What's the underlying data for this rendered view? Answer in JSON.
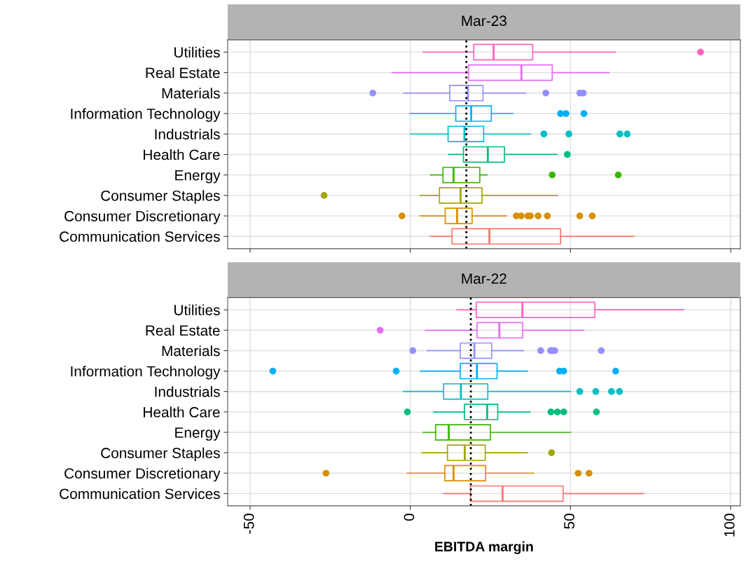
{
  "chart_data": [
    {
      "type": "box",
      "title": "Mar-23",
      "orientation": "horizontal",
      "tick_labels": "y",
      "grid": true,
      "marker": "circle",
      "categories": [
        "Utilities",
        "Real Estate",
        "Materials",
        "Information Technology",
        "Industrials",
        "Health Care",
        "Energy",
        "Consumer Staples",
        "Consumer Discretionary",
        "Communication Services"
      ],
      "colors": [
        "#ff62bc",
        "#e76bf3",
        "#9590ff",
        "#00b0f6",
        "#00bfc4",
        "#00bf7d",
        "#39b600",
        "#a3a500",
        "#d89000",
        "#f8766d"
      ],
      "xlim": [
        -57,
        103
      ],
      "xticks": [
        -50,
        0,
        50,
        100
      ],
      "ref_lines": [
        {
          "axis": "x",
          "value": 17.5,
          "color": "#000000",
          "line_style": "dotted"
        }
      ],
      "boxes": [
        {
          "low": 4,
          "q1": 19.8,
          "median": 26,
          "q3": 38.2,
          "high": 64,
          "outliers": [
            90.6
          ]
        },
        {
          "low": -5.7,
          "q1": 18.2,
          "median": 34.7,
          "q3": 44.3,
          "high": 62
        },
        {
          "low": -2,
          "q1": 12.3,
          "median": 18,
          "q3": 22.7,
          "high": 36,
          "outliers": [
            -11.7,
            42.3,
            52.9,
            54
          ]
        },
        {
          "low": 0,
          "q1": 14.2,
          "median": 19,
          "q3": 25.3,
          "high": 32,
          "outliers": [
            46.9,
            48.6,
            54.2
          ]
        },
        {
          "low": 0,
          "q1": 11.8,
          "median": 16.9,
          "q3": 22.9,
          "high": 37.5,
          "outliers": [
            41.7,
            49.5,
            65.4,
            67.7
          ]
        },
        {
          "low": 12,
          "q1": 16.6,
          "median": 24.2,
          "q3": 29.4,
          "high": 45.8,
          "outliers": [
            49
          ]
        },
        {
          "low": 6.3,
          "q1": 10.2,
          "median": 13.5,
          "q3": 21.7,
          "high": 24,
          "outliers": [
            44.3,
            64.9
          ]
        },
        {
          "low": 3.1,
          "q1": 9.1,
          "median": 15.7,
          "q3": 22.4,
          "high": 46,
          "outliers": [
            -26.9
          ]
        },
        {
          "low": 3,
          "q1": 10.9,
          "median": 14.6,
          "q3": 19.3,
          "high": 30,
          "outliers": [
            -2.6,
            33.1,
            34.6,
            36.7,
            37.5,
            39.9,
            42.8,
            52.9,
            56.8
          ]
        },
        {
          "low": 6.3,
          "q1": 13,
          "median": 24.7,
          "q3": 46.9,
          "high": 69.8
        }
      ]
    },
    {
      "type": "box",
      "title": "Mar-22",
      "orientation": "horizontal",
      "grid": true,
      "marker": "circle",
      "xlabel": "EBITDA margin",
      "categories": [
        "Utilities",
        "Real Estate",
        "Materials",
        "Information Technology",
        "Industrials",
        "Health Care",
        "Energy",
        "Consumer Staples",
        "Consumer Discretionary",
        "Communication Services"
      ],
      "colors": [
        "#ff62bc",
        "#e76bf3",
        "#9590ff",
        "#00b0f6",
        "#00bfc4",
        "#00bf7d",
        "#39b600",
        "#a3a500",
        "#d89000",
        "#f8766d"
      ],
      "xlim": [
        -57,
        103
      ],
      "xticks": [
        -50,
        0,
        50,
        100
      ],
      "ref_lines": [
        {
          "axis": "x",
          "value": 18.9,
          "color": "#000000",
          "line_style": "dotted"
        }
      ],
      "boxes": [
        {
          "low": 14.6,
          "q1": 20.6,
          "median": 35,
          "q3": 57.6,
          "high": 85.4
        },
        {
          "low": 4.7,
          "q1": 20.8,
          "median": 27.8,
          "q3": 35.1,
          "high": 54.2,
          "outliers": [
            -9.4
          ]
        },
        {
          "low": 5.2,
          "q1": 15.6,
          "median": 20,
          "q3": 25.4,
          "high": 35.4,
          "outliers": [
            0.8,
            40.7,
            43.8,
            44.3,
            45.1,
            59.6
          ]
        },
        {
          "low": 3.1,
          "q1": 15.6,
          "median": 20.8,
          "q3": 27.1,
          "high": 36.5,
          "outliers": [
            -42.9,
            -4.4,
            46.6,
            47.9,
            64.1
          ]
        },
        {
          "low": -2.1,
          "q1": 10.4,
          "median": 15.8,
          "q3": 24.2,
          "high": 50,
          "outliers": [
            52.9,
            57.9,
            62.8,
            65.3
          ]
        },
        {
          "low": 7.3,
          "q1": 16.9,
          "median": 24,
          "q3": 27.3,
          "high": 37.5,
          "outliers": [
            -0.9,
            43.9,
            45.9,
            47.9,
            58.1
          ]
        },
        {
          "low": 4,
          "q1": 7.9,
          "median": 12,
          "q3": 25,
          "high": 50
        },
        {
          "low": 3.6,
          "q1": 11.6,
          "median": 17,
          "q3": 23.4,
          "high": 36.5,
          "outliers": [
            44.1
          ]
        },
        {
          "low": -1,
          "q1": 10.8,
          "median": 13.5,
          "q3": 23.5,
          "high": 38.5,
          "outliers": [
            -26.3,
            52.4,
            55.8
          ]
        },
        {
          "low": 10.4,
          "q1": 18.8,
          "median": 28.8,
          "q3": 47.7,
          "high": 72.9
        }
      ]
    }
  ]
}
